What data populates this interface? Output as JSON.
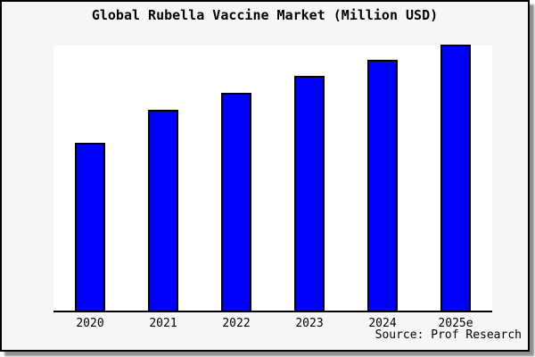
{
  "title": "Global Rubella Vaccine Market (Million USD)",
  "source": "Source: Prof Research",
  "frame": {
    "background": "#f6f6f6",
    "border_color": "#000000",
    "shadow_color": "#8f8f8f"
  },
  "chart_data": {
    "type": "bar",
    "title": "Global Rubella Vaccine Market (Million USD)",
    "categories": [
      "2020",
      "2021",
      "2022",
      "2023",
      "2024",
      "2025e"
    ],
    "values": [
      63.1,
      75.7,
      82.0,
      88.3,
      94.3,
      100
    ],
    "values_unit": "relative bar height, percent of tallest bar (no y-axis scale shown in image)",
    "xlabel": "",
    "ylabel": "",
    "y_axis_labels_visible": false,
    "grid": false,
    "legend": "none",
    "bar_color": "#0000ff",
    "bar_border_color": "#000000",
    "plot_background": "#ffffff",
    "source_note": "Source: Prof Research"
  }
}
